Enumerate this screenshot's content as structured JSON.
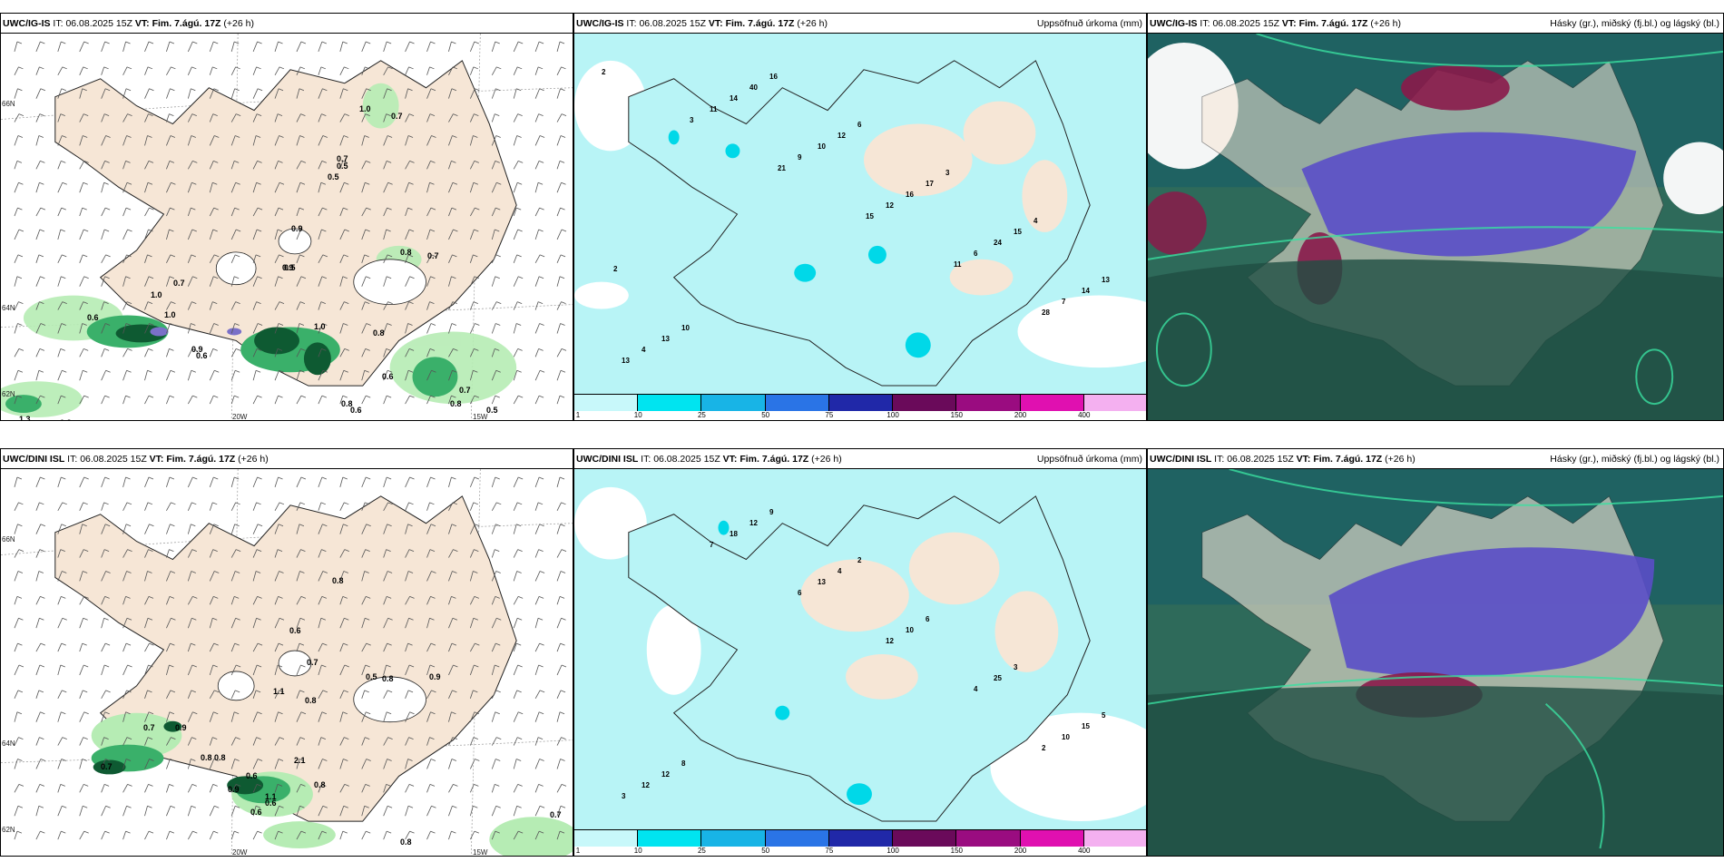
{
  "rows": [
    {
      "model": "UWC/IG-IS",
      "init_label": "IT:",
      "init": "06.08.2025 15Z",
      "valid_label": "VT:",
      "valid": "Fim. 7.ágú. 17Z",
      "lead": "(+26 h)",
      "lon_labels": [
        "20W",
        "15W"
      ],
      "lat_labels": [
        "66N",
        "64N",
        "62N"
      ],
      "left_values": [
        "1.0",
        "0.7",
        "0.7",
        "0.5",
        "0.5",
        "0.9",
        "0.9",
        "0.8",
        "0.7",
        "0.5",
        "0.7",
        "1.0",
        "0.6",
        "1.0",
        "0.9",
        "0.6",
        "1.0",
        "0.8",
        "0.6",
        "0.8",
        "0.6",
        "0.7",
        "0.8",
        "0.5",
        "1.3",
        "0.8"
      ],
      "mid_values": [
        "2",
        "3",
        "21",
        "15",
        "11",
        "28",
        "13",
        "11",
        "9",
        "12",
        "6",
        "7",
        "4",
        "14",
        "10",
        "16",
        "24",
        "14",
        "13",
        "40",
        "12",
        "17",
        "15",
        "13",
        "10",
        "16",
        "6",
        "3",
        "4",
        "2"
      ],
      "precip_title": "Uppsöfnuð úrkoma (mm)",
      "cloud_title": "Hásky (gr.), miðský (fj.bl.) og lágský (bl.)"
    },
    {
      "model": "UWC/DINI ISL",
      "init_label": "IT:",
      "init": "06.08.2025 15Z",
      "valid_label": "VT:",
      "valid": "Fim. 7.ágú. 17Z",
      "lead": "(+26 h)",
      "lon_labels": [
        "20W",
        "15W"
      ],
      "lat_labels": [
        "66N",
        "64N",
        "62N"
      ],
      "left_values": [
        "0.8",
        "0.6",
        "0.7",
        "1.1",
        "0.5",
        "0.8",
        "0.9",
        "0.8",
        "0.7",
        "0.9",
        "0.8",
        "0.8",
        "0.7",
        "0.6",
        "0.8",
        "0.9",
        "1.1",
        "0.6",
        "0.8",
        "2.1",
        "0.6",
        "0.7"
      ],
      "mid_values": [
        "2",
        "3",
        "7",
        "6",
        "12",
        "4",
        "10",
        "12",
        "18",
        "13",
        "10",
        "25",
        "15",
        "12",
        "12",
        "4",
        "6",
        "3",
        "5",
        "8",
        "9",
        "2"
      ],
      "precip_title": "Uppsöfnuð úrkoma (mm)",
      "cloud_title": "Hásky (gr.), miðský (fj.bl.) og lágský (bl.)"
    }
  ],
  "colorbar": {
    "labels": [
      "1",
      "10",
      "25",
      "50",
      "75",
      "100",
      "150",
      "200",
      "400"
    ],
    "colors": [
      "#c8f8fa",
      "#00e4f0",
      "#18b4e6",
      "#2a74e6",
      "#2028a8",
      "#6a0a5a",
      "#9a0c80",
      "#e010b0",
      "#f4b0f0"
    ]
  },
  "colors": {
    "land": "#f6e6d6",
    "sea": "#ffffff",
    "precip_light": "#b8f4f6",
    "green_light": "#b6ecb4",
    "green_mid": "#3ab06a",
    "green_dark": "#0e5a32",
    "cloud_high": "#1e6a62",
    "cloud_mid": "#5a4ec8",
    "cloud_low": "#8a1a4a"
  }
}
